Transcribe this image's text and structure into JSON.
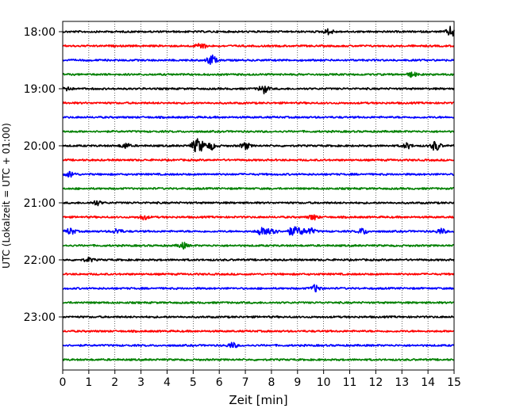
{
  "chart_data": {
    "type": "line",
    "title": "",
    "xlabel": "Zeit  [min]",
    "ylabel": "UTC (Lokalzeit = UTC + 01:00)",
    "xlim": [
      0,
      15
    ],
    "x_ticks": [
      "0",
      "1",
      "2",
      "3",
      "4",
      "5",
      "6",
      "7",
      "8",
      "9",
      "10",
      "11",
      "12",
      "13",
      "14",
      "15"
    ],
    "y_tick_labels": [
      "18:00",
      "19:00",
      "20:00",
      "21:00",
      "22:00",
      "23:00"
    ],
    "grid": "vertical dotted",
    "line_minutes": 15,
    "color_cycle": [
      "#000000",
      "#ff0000",
      "#0000ff",
      "#008000"
    ],
    "traces": [
      {
        "start": "18:00",
        "color": "#000000",
        "events": [
          {
            "min": 10.2,
            "amp": 0.45
          },
          {
            "min": 14.9,
            "amp": 0.9
          }
        ]
      },
      {
        "start": "18:15",
        "color": "#ff0000",
        "events": [
          {
            "min": 5.3,
            "amp": 0.6
          }
        ]
      },
      {
        "start": "18:30",
        "color": "#0000ff",
        "events": [
          {
            "min": 5.7,
            "amp": 0.9
          }
        ]
      },
      {
        "start": "18:45",
        "color": "#008000",
        "events": [
          {
            "min": 13.4,
            "amp": 0.4
          }
        ]
      },
      {
        "start": "19:00",
        "color": "#000000",
        "events": [
          {
            "min": 0.1,
            "amp": 0.6
          },
          {
            "min": 7.7,
            "amp": 0.75
          }
        ]
      },
      {
        "start": "19:15",
        "color": "#ff0000",
        "events": []
      },
      {
        "start": "19:30",
        "color": "#0000ff",
        "events": []
      },
      {
        "start": "19:45",
        "color": "#008000",
        "events": []
      },
      {
        "start": "20:00",
        "color": "#000000",
        "events": [
          {
            "min": 2.4,
            "amp": 0.45
          },
          {
            "min": 5.1,
            "amp": 0.9
          },
          {
            "min": 5.3,
            "amp": 0.7
          },
          {
            "min": 5.7,
            "amp": 0.6
          },
          {
            "min": 7.0,
            "amp": 0.55
          },
          {
            "min": 13.2,
            "amp": 0.45
          },
          {
            "min": 14.3,
            "amp": 0.85
          }
        ]
      },
      {
        "start": "20:15",
        "color": "#ff0000",
        "events": []
      },
      {
        "start": "20:30",
        "color": "#0000ff",
        "events": [
          {
            "min": 0.3,
            "amp": 0.5
          }
        ]
      },
      {
        "start": "20:45",
        "color": "#008000",
        "events": []
      },
      {
        "start": "21:00",
        "color": "#000000",
        "events": [
          {
            "min": 1.3,
            "amp": 0.4
          }
        ]
      },
      {
        "start": "21:15",
        "color": "#ff0000",
        "events": [
          {
            "min": 3.1,
            "amp": 0.4
          },
          {
            "min": 9.6,
            "amp": 0.45
          }
        ]
      },
      {
        "start": "21:30",
        "color": "#0000ff",
        "events": [
          {
            "min": 0.3,
            "amp": 0.55
          },
          {
            "min": 2.1,
            "amp": 0.45
          },
          {
            "min": 7.6,
            "amp": 0.6
          },
          {
            "min": 8.0,
            "amp": 0.95
          },
          {
            "min": 8.8,
            "amp": 0.7
          },
          {
            "min": 9.1,
            "amp": 0.6
          },
          {
            "min": 9.5,
            "amp": 0.5
          },
          {
            "min": 11.5,
            "amp": 0.5
          },
          {
            "min": 14.5,
            "amp": 0.45
          }
        ]
      },
      {
        "start": "21:45",
        "color": "#008000",
        "events": [
          {
            "min": 4.6,
            "amp": 0.5
          }
        ]
      },
      {
        "start": "22:00",
        "color": "#000000",
        "events": [
          {
            "min": 1.0,
            "amp": 0.35
          }
        ]
      },
      {
        "start": "22:15",
        "color": "#ff0000",
        "events": []
      },
      {
        "start": "22:30",
        "color": "#0000ff",
        "events": [
          {
            "min": 9.7,
            "amp": 0.6
          }
        ]
      },
      {
        "start": "22:45",
        "color": "#008000",
        "events": []
      },
      {
        "start": "23:00",
        "color": "#000000",
        "events": []
      },
      {
        "start": "23:15",
        "color": "#ff0000",
        "events": []
      },
      {
        "start": "23:30",
        "color": "#0000ff",
        "events": [
          {
            "min": 6.5,
            "amp": 0.45
          }
        ]
      },
      {
        "start": "23:45",
        "color": "#008000",
        "events": []
      }
    ]
  }
}
